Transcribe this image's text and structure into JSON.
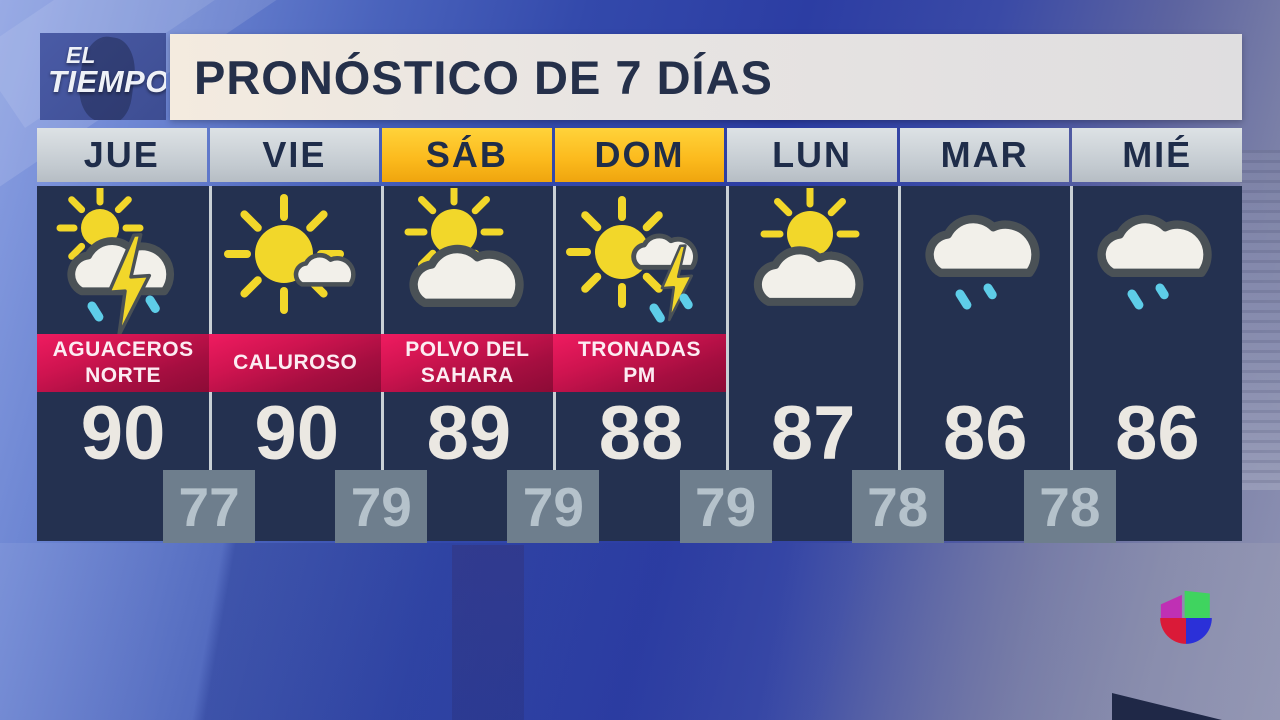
{
  "brand": {
    "logo_line1": "EL",
    "logo_line2": "TIEMPO"
  },
  "header": {
    "title": "PRONÓSTICO DE 7 DÍAS"
  },
  "forecast": {
    "days": [
      {
        "day": "JUE",
        "highlight": false,
        "icon": "sun-cloud-lightning-rain-icon",
        "condition_lines": [
          "AGUACEROS",
          "NORTE"
        ],
        "high": "90"
      },
      {
        "day": "VIE",
        "highlight": false,
        "icon": "sun-small-cloud-icon",
        "condition_lines": [
          "CALUROSO"
        ],
        "high": "90"
      },
      {
        "day": "SÁB",
        "highlight": true,
        "icon": "sun-behind-cloud-icon",
        "condition_lines": [
          "POLVO DEL",
          "SAHARA"
        ],
        "high": "89"
      },
      {
        "day": "DOM",
        "highlight": true,
        "icon": "sunny-cloud-lightning-rain-icon",
        "condition_lines": [
          "TRONADAS",
          "PM"
        ],
        "high": "88"
      },
      {
        "day": "LUN",
        "highlight": false,
        "icon": "partly-cloudy-icon",
        "condition_lines": [],
        "high": "87"
      },
      {
        "day": "MAR",
        "highlight": false,
        "icon": "cloud-light-rain-icon",
        "condition_lines": [],
        "high": "86"
      },
      {
        "day": "MIÉ",
        "highlight": false,
        "icon": "cloud-light-rain-icon",
        "condition_lines": [],
        "high": "86"
      }
    ],
    "lows": [
      "77",
      "79",
      "79",
      "79",
      "78",
      "78"
    ]
  },
  "chart_data": {
    "type": "table",
    "title": "PRONÓSTICO DE 7 DÍAS",
    "categories": [
      "JUE",
      "VIE",
      "SÁB",
      "DOM",
      "LUN",
      "MAR",
      "MIÉ"
    ],
    "series": [
      {
        "name": "high_temp_f",
        "values": [
          90,
          90,
          89,
          88,
          87,
          86,
          86
        ]
      },
      {
        "name": "low_temp_f_between_columns",
        "values": [
          77,
          79,
          79,
          79,
          78,
          78
        ]
      }
    ],
    "conditions": [
      "AGUACEROS NORTE",
      "CALUROSO",
      "POLVO DEL SAHARA",
      "TRONADAS PM",
      "",
      "",
      ""
    ],
    "highlighted_days": [
      "SÁB",
      "DOM"
    ]
  },
  "network_logo": {
    "name": "univision-logo",
    "quadrants": [
      "#bf30b4",
      "#3fd45f",
      "#da1a38",
      "#2b30d8"
    ]
  },
  "colors": {
    "panel_navy": "#243150",
    "banner_red_top": "#e5195c",
    "banner_red_bottom": "#8c0b36",
    "day_gold": "#ffcf2e",
    "day_silver": "#ced4d9",
    "low_box_gray": "#6e7e8d",
    "rain_cyan": "#5ecde8",
    "sun_yellow": "#f2d72a",
    "background_blue": "#2c3da3"
  }
}
